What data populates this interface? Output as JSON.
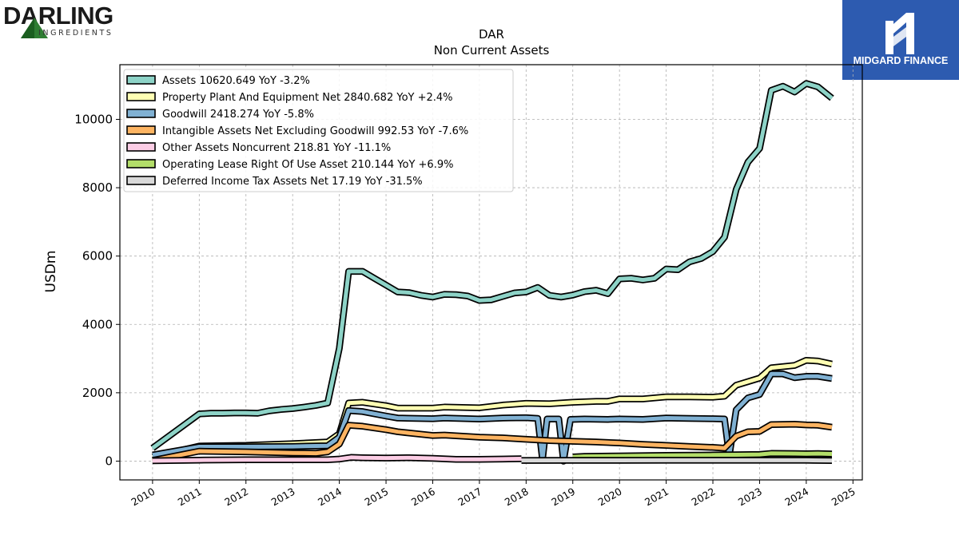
{
  "logos": {
    "left_brand": "DARLING",
    "left_sub": "INGREDIENTS",
    "right_brand": "MIDGARD FINANCE"
  },
  "chart_data": {
    "type": "line",
    "title": "DAR",
    "subtitle": "Non Current  Assets",
    "ylabel": "USDm",
    "xlabel": "",
    "xlim": [
      2009.3,
      2025.2
    ],
    "ylim": [
      -550,
      11600
    ],
    "x_ticks": [
      2010,
      2011,
      2012,
      2013,
      2014,
      2015,
      2016,
      2017,
      2018,
      2019,
      2020,
      2021,
      2022,
      2023,
      2024,
      2025
    ],
    "y_ticks": [
      0,
      2000,
      4000,
      6000,
      8000,
      10000
    ],
    "grid": true,
    "legend_position": "top-left",
    "series": [
      {
        "name": "Assets",
        "legend": "Assets  10620.649 YoY -3.2%",
        "color": "#8dd3c7",
        "points": [
          [
            2010.0,
            380
          ],
          [
            2011.0,
            1380
          ],
          [
            2011.25,
            1400
          ],
          [
            2011.5,
            1400
          ],
          [
            2011.75,
            1410
          ],
          [
            2012.0,
            1410
          ],
          [
            2012.25,
            1400
          ],
          [
            2012.5,
            1470
          ],
          [
            2012.75,
            1510
          ],
          [
            2013.0,
            1540
          ],
          [
            2013.25,
            1580
          ],
          [
            2013.5,
            1630
          ],
          [
            2013.75,
            1700
          ],
          [
            2014.0,
            3300
          ],
          [
            2014.2,
            5550
          ],
          [
            2014.5,
            5550
          ],
          [
            2014.75,
            5350
          ],
          [
            2015.0,
            5150
          ],
          [
            2015.25,
            4950
          ],
          [
            2015.5,
            4930
          ],
          [
            2015.75,
            4850
          ],
          [
            2016.0,
            4800
          ],
          [
            2016.25,
            4880
          ],
          [
            2016.5,
            4870
          ],
          [
            2016.75,
            4830
          ],
          [
            2017.0,
            4700
          ],
          [
            2017.25,
            4720
          ],
          [
            2017.5,
            4820
          ],
          [
            2017.75,
            4920
          ],
          [
            2018.0,
            4950
          ],
          [
            2018.25,
            5080
          ],
          [
            2018.5,
            4850
          ],
          [
            2018.75,
            4800
          ],
          [
            2019.0,
            4860
          ],
          [
            2019.25,
            4960
          ],
          [
            2019.5,
            5000
          ],
          [
            2019.75,
            4900
          ],
          [
            2020.0,
            5330
          ],
          [
            2020.25,
            5350
          ],
          [
            2020.5,
            5300
          ],
          [
            2020.75,
            5350
          ],
          [
            2021.0,
            5620
          ],
          [
            2021.25,
            5600
          ],
          [
            2021.5,
            5830
          ],
          [
            2021.75,
            5930
          ],
          [
            2022.0,
            6130
          ],
          [
            2022.25,
            6550
          ],
          [
            2022.5,
            7950
          ],
          [
            2022.75,
            8750
          ],
          [
            2023.0,
            9150
          ],
          [
            2023.25,
            10850
          ],
          [
            2023.5,
            10970
          ],
          [
            2023.75,
            10800
          ],
          [
            2024.0,
            11050
          ],
          [
            2024.25,
            10950
          ],
          [
            2024.55,
            10620
          ]
        ]
      },
      {
        "name": "Property Plant And Equipment Net",
        "legend": "Property Plant And Equipment Net  2840.682 YoY +2.4%",
        "color": "#ffffb3",
        "points": [
          [
            2010.0,
            120
          ],
          [
            2011.0,
            440
          ],
          [
            2012.0,
            460
          ],
          [
            2013.0,
            510
          ],
          [
            2013.75,
            560
          ],
          [
            2014.0,
            800
          ],
          [
            2014.2,
            1700
          ],
          [
            2014.5,
            1720
          ],
          [
            2015.0,
            1620
          ],
          [
            2015.25,
            1550
          ],
          [
            2016.0,
            1550
          ],
          [
            2016.25,
            1580
          ],
          [
            2017.0,
            1560
          ],
          [
            2017.5,
            1640
          ],
          [
            2018.0,
            1690
          ],
          [
            2018.5,
            1680
          ],
          [
            2019.0,
            1720
          ],
          [
            2019.5,
            1750
          ],
          [
            2019.75,
            1750
          ],
          [
            2020.0,
            1820
          ],
          [
            2020.5,
            1820
          ],
          [
            2021.0,
            1880
          ],
          [
            2021.5,
            1880
          ],
          [
            2022.0,
            1870
          ],
          [
            2022.25,
            1900
          ],
          [
            2022.5,
            2220
          ],
          [
            2023.0,
            2430
          ],
          [
            2023.25,
            2730
          ],
          [
            2023.75,
            2800
          ],
          [
            2024.0,
            2950
          ],
          [
            2024.25,
            2930
          ],
          [
            2024.55,
            2840
          ]
        ]
      },
      {
        "name": "Goodwill",
        "legend": "Goodwill  2418.274 YoY -5.8%",
        "color": "#80b1d3",
        "points": [
          [
            2010.0,
            180
          ],
          [
            2011.0,
            420
          ],
          [
            2012.0,
            420
          ],
          [
            2013.0,
            430
          ],
          [
            2013.75,
            450
          ],
          [
            2014.0,
            700
          ],
          [
            2014.2,
            1480
          ],
          [
            2014.5,
            1450
          ],
          [
            2015.0,
            1320
          ],
          [
            2015.25,
            1260
          ],
          [
            2016.0,
            1240
          ],
          [
            2016.25,
            1260
          ],
          [
            2017.0,
            1230
          ],
          [
            2017.5,
            1260
          ],
          [
            2018.0,
            1270
          ],
          [
            2018.25,
            1250
          ],
          [
            2018.35,
            40
          ],
          [
            2018.45,
            1230
          ],
          [
            2018.7,
            1230
          ],
          [
            2018.8,
            0
          ],
          [
            2018.95,
            1220
          ],
          [
            2019.25,
            1230
          ],
          [
            2019.75,
            1220
          ],
          [
            2020.0,
            1230
          ],
          [
            2020.5,
            1220
          ],
          [
            2021.0,
            1260
          ],
          [
            2021.5,
            1250
          ],
          [
            2022.0,
            1240
          ],
          [
            2022.25,
            1230
          ],
          [
            2022.35,
            150
          ],
          [
            2022.5,
            1500
          ],
          [
            2022.75,
            1850
          ],
          [
            2023.0,
            1950
          ],
          [
            2023.25,
            2550
          ],
          [
            2023.5,
            2550
          ],
          [
            2023.75,
            2440
          ],
          [
            2024.0,
            2480
          ],
          [
            2024.25,
            2480
          ],
          [
            2024.55,
            2418
          ]
        ]
      },
      {
        "name": "Intangible Assets Net Excluding Goodwill",
        "legend": "Intangible Assets Net Excluding Goodwill  992.53 YoY -7.6%",
        "color": "#fdb462",
        "points": [
          [
            2010.0,
            20
          ],
          [
            2011.0,
            290
          ],
          [
            2012.0,
            270
          ],
          [
            2013.0,
            240
          ],
          [
            2013.5,
            230
          ],
          [
            2013.75,
            270
          ],
          [
            2014.0,
            500
          ],
          [
            2014.2,
            1050
          ],
          [
            2014.5,
            1020
          ],
          [
            2015.0,
            920
          ],
          [
            2015.25,
            860
          ],
          [
            2016.0,
            750
          ],
          [
            2016.25,
            760
          ],
          [
            2017.0,
            700
          ],
          [
            2017.5,
            680
          ],
          [
            2018.0,
            640
          ],
          [
            2018.5,
            600
          ],
          [
            2019.0,
            580
          ],
          [
            2019.5,
            560
          ],
          [
            2020.0,
            530
          ],
          [
            2020.5,
            490
          ],
          [
            2021.0,
            460
          ],
          [
            2021.5,
            430
          ],
          [
            2022.0,
            400
          ],
          [
            2022.25,
            380
          ],
          [
            2022.5,
            730
          ],
          [
            2022.75,
            860
          ],
          [
            2023.0,
            870
          ],
          [
            2023.25,
            1070
          ],
          [
            2023.75,
            1080
          ],
          [
            2024.0,
            1060
          ],
          [
            2024.25,
            1050
          ],
          [
            2024.55,
            992
          ]
        ]
      },
      {
        "name": "Other Assets Noncurrent",
        "legend": "Other Assets Noncurrent  218.81 YoY -11.1%",
        "color": "#fccde5",
        "points": [
          [
            2010.0,
            10
          ],
          [
            2011.0,
            30
          ],
          [
            2012.0,
            40
          ],
          [
            2013.0,
            40
          ],
          [
            2013.75,
            40
          ],
          [
            2014.0,
            60
          ],
          [
            2014.25,
            110
          ],
          [
            2014.5,
            100
          ],
          [
            2015.0,
            90
          ],
          [
            2015.5,
            100
          ],
          [
            2016.0,
            80
          ],
          [
            2016.5,
            50
          ],
          [
            2017.0,
            50
          ],
          [
            2017.5,
            60
          ],
          [
            2017.9,
            70
          ]
        ]
      },
      {
        "name": "Operating Lease Right Of Use Asset",
        "legend": "Operating Lease Right Of Use Asset  210.144 YoY +6.9%",
        "color": "#b3de69",
        "points": [
          [
            2019.0,
            120
          ],
          [
            2019.25,
            140
          ],
          [
            2020.0,
            150
          ],
          [
            2020.5,
            160
          ],
          [
            2021.0,
            170
          ],
          [
            2022.0,
            180
          ],
          [
            2022.5,
            185
          ],
          [
            2023.0,
            195
          ],
          [
            2023.25,
            225
          ],
          [
            2023.75,
            220
          ],
          [
            2024.0,
            215
          ],
          [
            2024.25,
            220
          ],
          [
            2024.55,
            210
          ]
        ]
      },
      {
        "name": "Deferred Income Tax Assets Net",
        "legend": "Deferred Income Tax Assets Net  17.19 YoY -31.5%",
        "color": "#d9d9d9",
        "points": [
          [
            2017.9,
            20
          ],
          [
            2019.0,
            22
          ],
          [
            2020.0,
            22
          ],
          [
            2021.0,
            24
          ],
          [
            2022.0,
            25
          ],
          [
            2023.0,
            25
          ],
          [
            2024.0,
            24
          ],
          [
            2024.55,
            17
          ]
        ]
      }
    ]
  }
}
